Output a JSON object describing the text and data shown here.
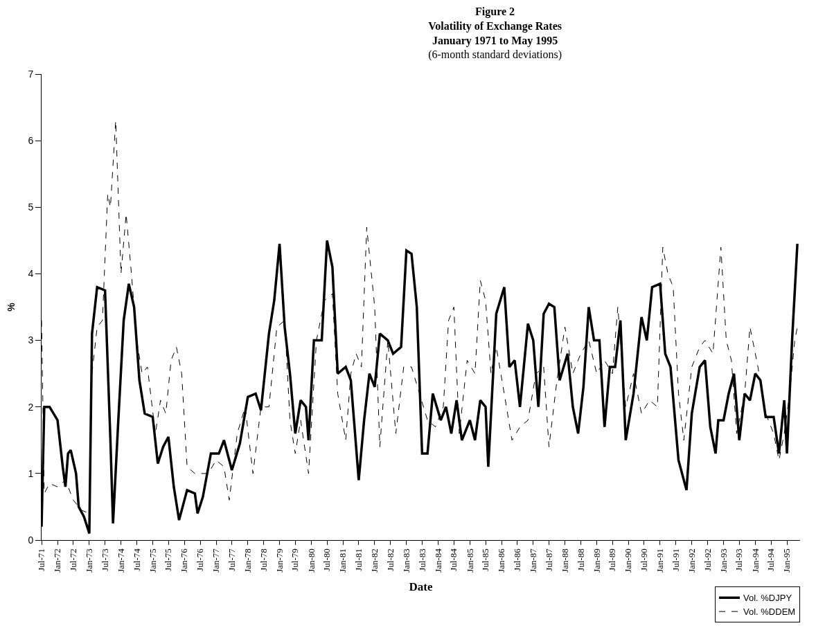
{
  "chart_data": {
    "type": "line",
    "title": "Figure 2\nVolatility of Exchange Rates\nJanuary 1971 to May 1995",
    "subtitle": "(6-month standard deviations)",
    "xlabel": "Date",
    "ylabel": "%",
    "xlim": [
      "1971-07",
      "1995-06"
    ],
    "ylim": [
      0,
      7
    ],
    "yticks": [
      0,
      1,
      2,
      3,
      4,
      5,
      6,
      7
    ],
    "xticks": [
      {
        "value": "1971-07",
        "label": "Jul-71"
      },
      {
        "value": "1972-01",
        "label": "Jan-72"
      },
      {
        "value": "1972-07",
        "label": "Jul-72"
      },
      {
        "value": "1973-01",
        "label": "Jan-73"
      },
      {
        "value": "1973-07",
        "label": "Jul-73"
      },
      {
        "value": "1974-01",
        "label": "Jan-74"
      },
      {
        "value": "1974-07",
        "label": "Jul-74"
      },
      {
        "value": "1975-01",
        "label": "Jan-75"
      },
      {
        "value": "1975-07",
        "label": "Jul-75"
      },
      {
        "value": "1976-01",
        "label": "Jan-76"
      },
      {
        "value": "1976-07",
        "label": "Jul-76"
      },
      {
        "value": "1977-01",
        "label": "Jan-77"
      },
      {
        "value": "1977-07",
        "label": "Jul-77"
      },
      {
        "value": "1978-01",
        "label": "Jan-78"
      },
      {
        "value": "1978-07",
        "label": "Jul-78"
      },
      {
        "value": "1979-01",
        "label": "Jan-79"
      },
      {
        "value": "1979-07",
        "label": "Jul-79"
      },
      {
        "value": "1980-01",
        "label": "Jan-80"
      },
      {
        "value": "1980-07",
        "label": "Jul-80"
      },
      {
        "value": "1981-01",
        "label": "Jan-81"
      },
      {
        "value": "1981-07",
        "label": "Jul-81"
      },
      {
        "value": "1982-01",
        "label": "Jan-82"
      },
      {
        "value": "1982-07",
        "label": "Jul-82"
      },
      {
        "value": "1983-01",
        "label": "Jan-83"
      },
      {
        "value": "1983-07",
        "label": "Jul-83"
      },
      {
        "value": "1984-01",
        "label": "Jan-84"
      },
      {
        "value": "1984-07",
        "label": "Jul-84"
      },
      {
        "value": "1985-01",
        "label": "Jan-85"
      },
      {
        "value": "1985-07",
        "label": "Jul-85"
      },
      {
        "value": "1986-01",
        "label": "Jan-86"
      },
      {
        "value": "1986-07",
        "label": "Jul-86"
      },
      {
        "value": "1987-01",
        "label": "Jan-87"
      },
      {
        "value": "1987-07",
        "label": "Jul-87"
      },
      {
        "value": "1988-01",
        "label": "Jan-88"
      },
      {
        "value": "1988-07",
        "label": "Jul-88"
      },
      {
        "value": "1989-01",
        "label": "Jan-89"
      },
      {
        "value": "1989-07",
        "label": "Jul-89"
      },
      {
        "value": "1990-01",
        "label": "Jan-90"
      },
      {
        "value": "1990-07",
        "label": "Jul-90"
      },
      {
        "value": "1991-01",
        "label": "Jan-91"
      },
      {
        "value": "1991-07",
        "label": "Jul-91"
      },
      {
        "value": "1992-01",
        "label": "Jan-92"
      },
      {
        "value": "1992-07",
        "label": "Jul-92"
      },
      {
        "value": "1993-01",
        "label": "Jan-93"
      },
      {
        "value": "1993-07",
        "label": "Jul-93"
      },
      {
        "value": "1994-01",
        "label": "Jan-94"
      },
      {
        "value": "1994-07",
        "label": "Jul-94"
      },
      {
        "value": "1995-01",
        "label": "Jan-95"
      }
    ],
    "legend": "bottom right",
    "marker": "none",
    "series": [
      {
        "name": "Vol. %DJPY",
        "color": "#000000",
        "line_style": "solid",
        "x": [
          "1971-07",
          "1971-08",
          "1971-10",
          "1972-01",
          "1972-03",
          "1972-04",
          "1972-05",
          "1972-06",
          "1972-08",
          "1972-09",
          "1972-11",
          "1973-01",
          "1973-02",
          "1973-04",
          "1973-07",
          "1973-09",
          "1973-10",
          "1973-12",
          "1974-02",
          "1974-04",
          "1974-06",
          "1974-08",
          "1974-10",
          "1975-01",
          "1975-03",
          "1975-05",
          "1975-07",
          "1975-09",
          "1975-11",
          "1976-02",
          "1976-05",
          "1976-06",
          "1976-08",
          "1976-11",
          "1977-02",
          "1977-04",
          "1977-07",
          "1977-10",
          "1978-01",
          "1978-04",
          "1978-06",
          "1978-09",
          "1978-11",
          "1979-01",
          "1979-03",
          "1979-05",
          "1979-07",
          "1979-09",
          "1979-11",
          "1979-12",
          "1980-02",
          "1980-05",
          "1980-07",
          "1980-09",
          "1980-11",
          "1981-02",
          "1981-04",
          "1981-07",
          "1981-09",
          "1981-11",
          "1982-01",
          "1982-03",
          "1982-06",
          "1982-08",
          "1982-11",
          "1983-01",
          "1983-03",
          "1983-05",
          "1983-07",
          "1983-09",
          "1983-11",
          "1984-02",
          "1984-04",
          "1984-06",
          "1984-08",
          "1984-10",
          "1985-01",
          "1985-03",
          "1985-05",
          "1985-07",
          "1985-08",
          "1985-11",
          "1986-02",
          "1986-04",
          "1986-06",
          "1986-08",
          "1986-11",
          "1987-01",
          "1987-03",
          "1987-05",
          "1987-07",
          "1987-09",
          "1987-11",
          "1988-02",
          "1988-04",
          "1988-06",
          "1988-08",
          "1988-10",
          "1988-12",
          "1989-02",
          "1989-04",
          "1989-06",
          "1989-08",
          "1989-10",
          "1989-12",
          "1990-03",
          "1990-06",
          "1990-08",
          "1990-10",
          "1991-01",
          "1991-03",
          "1991-05",
          "1991-08",
          "1991-11",
          "1992-01",
          "1992-04",
          "1992-06",
          "1992-08",
          "1992-10",
          "1992-11",
          "1993-01",
          "1993-03",
          "1993-05",
          "1993-07",
          "1993-09",
          "1993-11",
          "1994-01",
          "1994-03",
          "1994-05",
          "1994-08",
          "1994-10",
          "1994-12",
          "1995-01",
          "1995-03",
          "1995-05"
        ],
        "values": [
          0.2,
          2.0,
          2.0,
          1.8,
          1.1,
          0.8,
          1.3,
          1.35,
          1.0,
          0.5,
          0.35,
          0.1,
          3.1,
          3.8,
          3.75,
          1.5,
          0.25,
          1.8,
          3.3,
          3.85,
          3.5,
          2.4,
          1.9,
          1.85,
          1.15,
          1.4,
          1.55,
          0.8,
          0.3,
          0.75,
          0.7,
          0.4,
          0.65,
          1.3,
          1.3,
          1.5,
          1.05,
          1.45,
          2.15,
          2.2,
          1.95,
          3.1,
          3.6,
          4.45,
          3.2,
          2.5,
          1.6,
          2.1,
          2.0,
          1.5,
          3.0,
          3.0,
          4.5,
          4.1,
          2.5,
          2.6,
          2.4,
          0.9,
          1.8,
          2.5,
          2.3,
          3.1,
          3.0,
          2.8,
          2.9,
          4.35,
          4.3,
          3.5,
          1.3,
          1.3,
          2.2,
          1.8,
          2.0,
          1.6,
          2.1,
          1.5,
          1.8,
          1.5,
          2.1,
          2.0,
          1.1,
          3.4,
          3.8,
          2.6,
          2.7,
          2.0,
          3.25,
          3.0,
          2.0,
          3.4,
          3.55,
          3.5,
          2.4,
          2.8,
          2.0,
          1.6,
          2.3,
          3.5,
          3.0,
          3.0,
          1.7,
          2.6,
          2.6,
          3.3,
          1.5,
          2.2,
          3.35,
          3.0,
          3.8,
          3.85,
          2.8,
          2.6,
          1.2,
          0.75,
          1.9,
          2.6,
          2.7,
          1.7,
          1.3,
          1.8,
          1.8,
          2.2,
          2.5,
          1.5,
          2.2,
          2.1,
          2.5,
          2.4,
          1.85,
          1.85,
          1.3,
          2.1,
          1.3,
          3.0,
          4.45
        ]
      },
      {
        "name": "Vol. %DDEM",
        "color": "#000000",
        "line_style": "dashed",
        "x": [
          "1971-07",
          "1971-08",
          "1971-10",
          "1972-01",
          "1972-04",
          "1972-07",
          "1972-10",
          "1973-01",
          "1973-02",
          "1973-04",
          "1973-06",
          "1973-08",
          "1973-09",
          "1973-11",
          "1974-01",
          "1974-03",
          "1974-05",
          "1974-07",
          "1974-09",
          "1974-11",
          "1975-02",
          "1975-04",
          "1975-06",
          "1975-08",
          "1975-10",
          "1975-12",
          "1976-02",
          "1976-05",
          "1976-08",
          "1976-10",
          "1977-01",
          "1977-04",
          "1977-06",
          "1977-09",
          "1977-12",
          "1978-03",
          "1978-06",
          "1978-09",
          "1978-12",
          "1979-03",
          "1979-05",
          "1979-07",
          "1979-09",
          "1979-12",
          "1980-03",
          "1980-06",
          "1980-09",
          "1980-11",
          "1981-02",
          "1981-04",
          "1981-06",
          "1981-08",
          "1981-10",
          "1982-01",
          "1982-03",
          "1982-06",
          "1982-09",
          "1982-12",
          "1983-03",
          "1983-06",
          "1983-09",
          "1983-12",
          "1984-03",
          "1984-05",
          "1984-07",
          "1984-09",
          "1984-12",
          "1985-03",
          "1985-05",
          "1985-07",
          "1985-09",
          "1985-11",
          "1986-02",
          "1986-05",
          "1986-08",
          "1986-11",
          "1987-02",
          "1987-05",
          "1987-07",
          "1987-10",
          "1988-01",
          "1988-04",
          "1988-07",
          "1988-10",
          "1989-01",
          "1989-04",
          "1989-07",
          "1989-09",
          "1989-12",
          "1990-03",
          "1990-06",
          "1990-09",
          "1990-12",
          "1991-02",
          "1991-04",
          "1991-06",
          "1991-08",
          "1991-10",
          "1992-01",
          "1992-04",
          "1992-06",
          "1992-09",
          "1992-12",
          "1993-02",
          "1993-04",
          "1993-06",
          "1993-09",
          "1993-11",
          "1994-02",
          "1994-05",
          "1994-08",
          "1994-10",
          "1994-12",
          "1995-02",
          "1995-04",
          "1995-05"
        ],
        "values": [
          3.3,
          0.7,
          0.85,
          0.8,
          0.9,
          0.6,
          0.45,
          0.4,
          2.5,
          3.2,
          3.3,
          5.2,
          5.0,
          6.3,
          4.0,
          4.9,
          4.0,
          3.0,
          2.5,
          2.6,
          1.6,
          2.1,
          1.9,
          2.7,
          2.9,
          2.5,
          1.1,
          1.0,
          1.0,
          1.0,
          1.2,
          1.1,
          0.6,
          1.6,
          2.0,
          1.0,
          2.0,
          2.0,
          3.2,
          3.3,
          1.8,
          1.3,
          1.8,
          1.0,
          3.0,
          3.6,
          3.7,
          2.2,
          1.5,
          2.5,
          2.8,
          2.6,
          4.7,
          3.5,
          1.4,
          3.0,
          1.6,
          2.6,
          2.6,
          2.2,
          1.8,
          1.7,
          2.0,
          3.3,
          3.5,
          1.6,
          2.7,
          2.5,
          3.9,
          3.6,
          2.5,
          2.9,
          2.2,
          1.5,
          1.7,
          1.8,
          2.5,
          2.6,
          1.4,
          2.4,
          3.2,
          2.5,
          2.8,
          3.0,
          2.5,
          2.7,
          2.5,
          3.5,
          2.0,
          2.5,
          1.9,
          2.1,
          2.0,
          4.4,
          4.0,
          3.8,
          2.2,
          1.5,
          2.6,
          2.9,
          3.0,
          2.8,
          4.4,
          3.0,
          2.7,
          1.6,
          2.2,
          3.2,
          2.6,
          1.9,
          1.6,
          1.2,
          1.6,
          2.2,
          3.0,
          3.2
        ]
      }
    ]
  }
}
